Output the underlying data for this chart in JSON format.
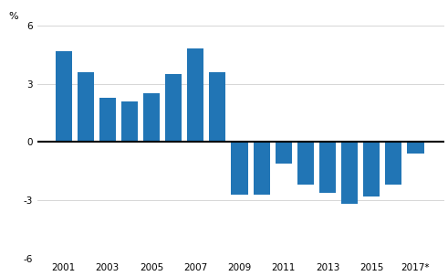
{
  "years": [
    2001,
    2002,
    2003,
    2004,
    2005,
    2006,
    2007,
    2008,
    2009,
    2010,
    2011,
    2012,
    2013,
    2014,
    2015,
    2016,
    2017
  ],
  "values": [
    4.7,
    3.6,
    2.3,
    2.1,
    2.5,
    3.5,
    4.8,
    3.6,
    -2.7,
    -2.7,
    -1.1,
    -2.2,
    -2.6,
    -3.2,
    -2.8,
    -2.2,
    -0.6
  ],
  "bar_color": "#2175b5",
  "ylabel": "%",
  "ylim": [
    -6,
    6
  ],
  "yticks": [
    -6,
    -3,
    0,
    3,
    6
  ],
  "xtick_labels": [
    "2001",
    "2003",
    "2005",
    "2007",
    "2009",
    "2011",
    "2013",
    "2015",
    "2017*"
  ],
  "xtick_positions": [
    2001,
    2003,
    2005,
    2007,
    2009,
    2011,
    2013,
    2015,
    2017
  ],
  "background_color": "#ffffff",
  "grid_color": "#d0d0d0",
  "xlim": [
    1999.8,
    2018.3
  ]
}
